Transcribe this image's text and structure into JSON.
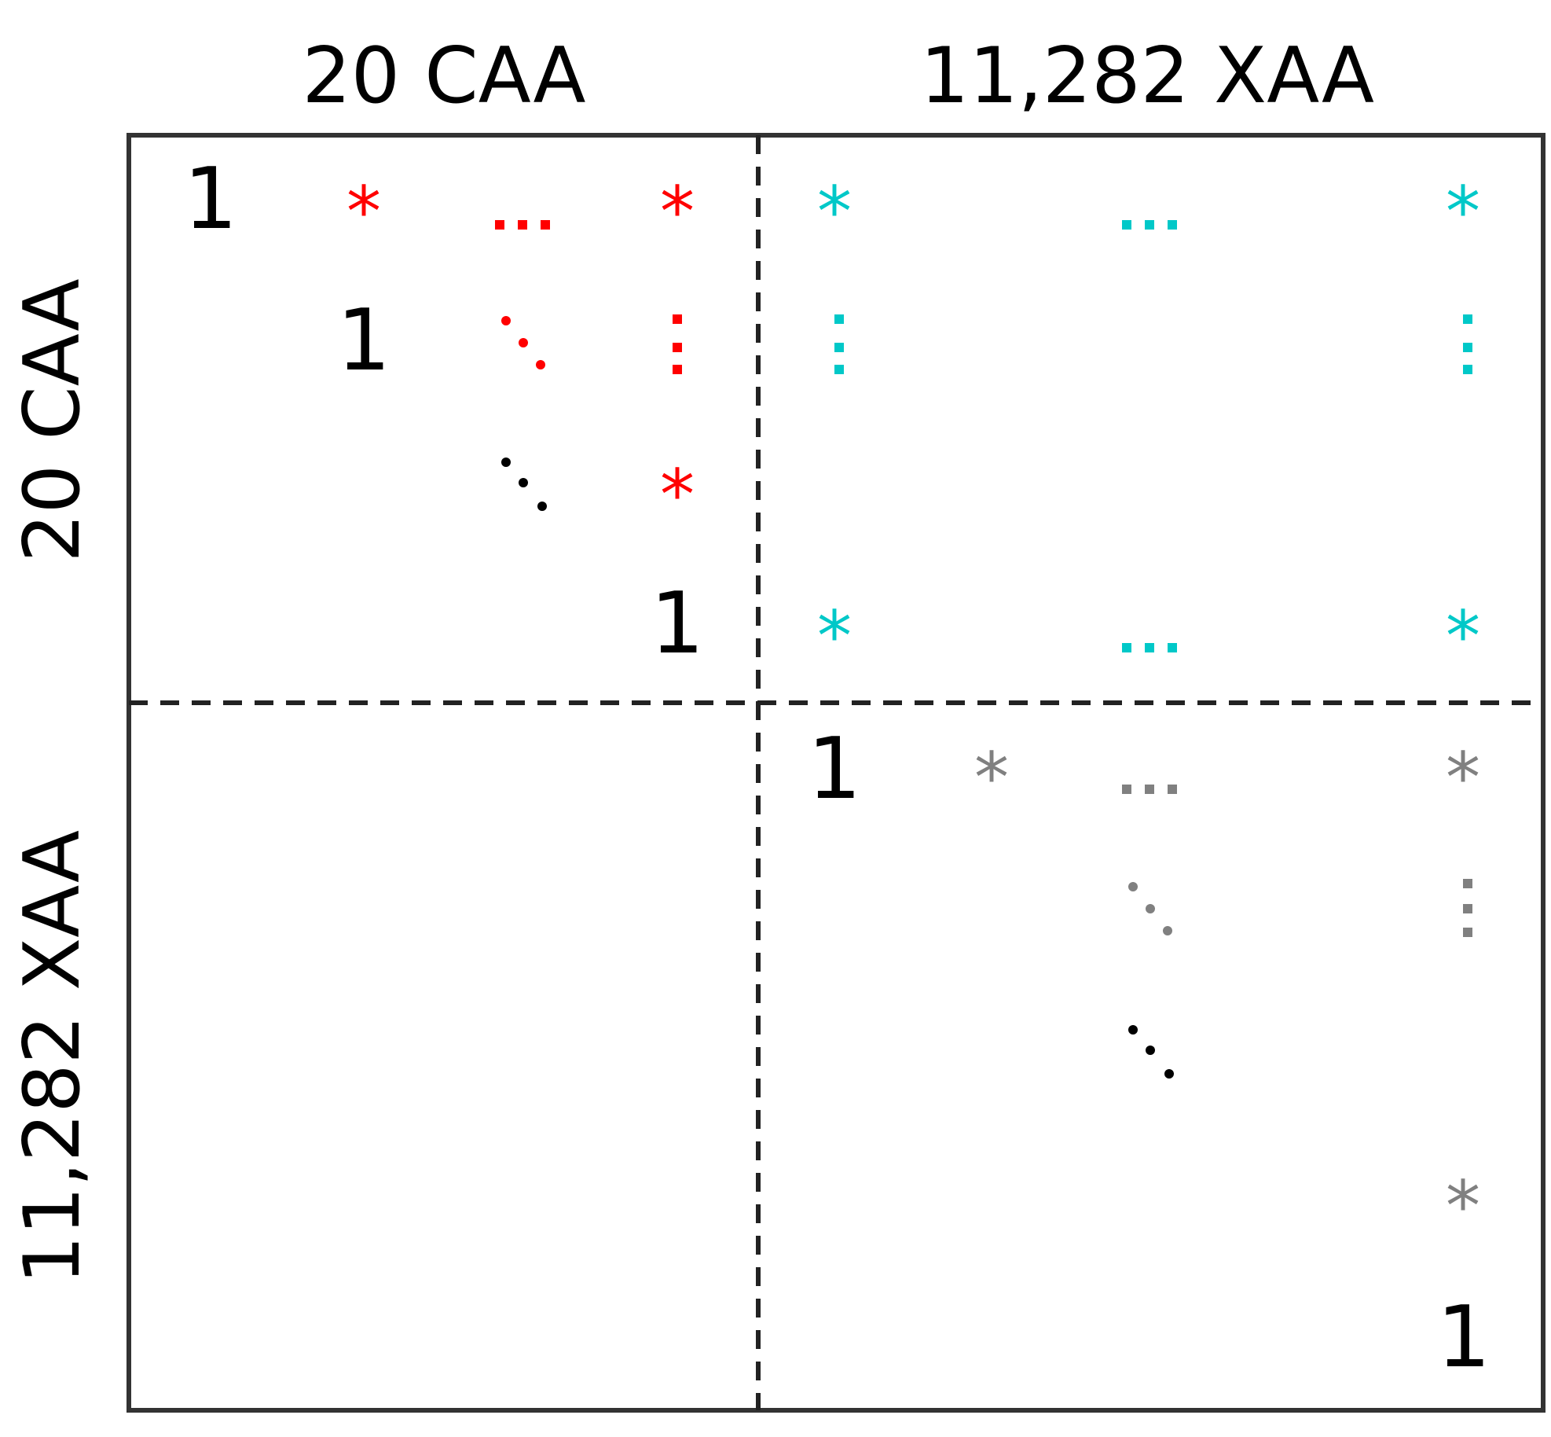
{
  "column_headers": {
    "caa": "20 CAA",
    "xaa": "11,282 XAA"
  },
  "row_headers": {
    "caa": "20 CAA",
    "xaa": "11,282 XAA"
  },
  "symbols": {
    "one": "1",
    "star": "*"
  },
  "colors": {
    "border": "#333333",
    "diagonal": "#000000",
    "caa_block": "#ff0000",
    "cross_block": "#00c8c8",
    "xaa_block": "#808080"
  }
}
